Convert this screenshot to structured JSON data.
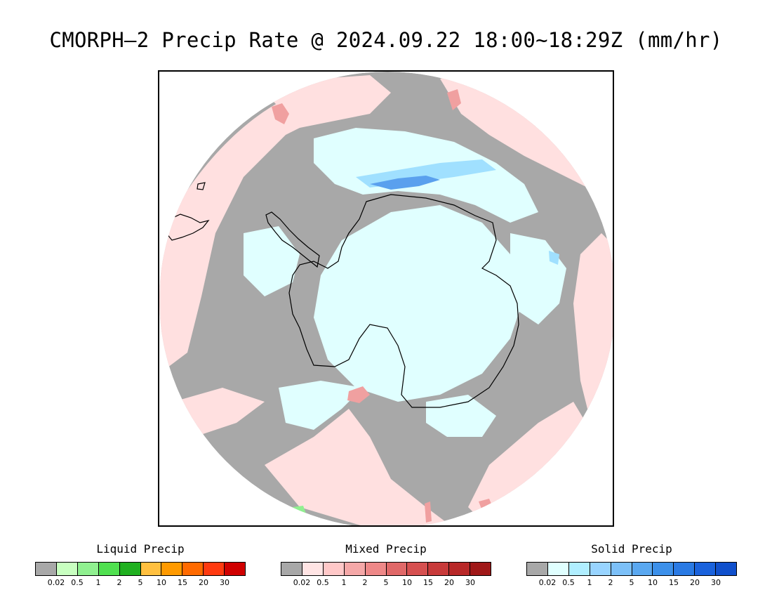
{
  "title": "CMORPH–2 Precip Rate @ 2024.09.22 18:00~18:29Z (mm/hr)",
  "map": {
    "projection": "south-polar-stereographic",
    "colors": {
      "no_data_gray": "#a8a8a8",
      "liquid_light": "#ffe0e0",
      "snow_light": "#e0ffff",
      "snow_mid": "#a0e0ff",
      "snow_blue": "#5aa0ee",
      "mixed_mid": "#f0a0a0",
      "coastline": "#000000",
      "green_spot": "#90f090"
    }
  },
  "legends": [
    {
      "title": "Liquid Precip",
      "colors": [
        "#a8a8a8",
        "#c8ffc0",
        "#90f090",
        "#50e050",
        "#20b020",
        "#ffc040",
        "#ff9a00",
        "#ff6a00",
        "#ff3a10",
        "#d00000"
      ],
      "ticks": [
        "0.02",
        "0.5",
        "1",
        "2",
        "5",
        "10",
        "15",
        "20",
        "30"
      ]
    },
    {
      "title": "Mixed Precip",
      "colors": [
        "#a8a8a8",
        "#ffe4e4",
        "#ffc8c8",
        "#f5a8a8",
        "#ee8888",
        "#e06868",
        "#d65050",
        "#c83a3a",
        "#b82828",
        "#a01818"
      ],
      "ticks": [
        "0.02",
        "0.5",
        "1",
        "2",
        "5",
        "10",
        "15",
        "20",
        "30"
      ]
    },
    {
      "title": "Solid Precip",
      "colors": [
        "#a8a8a8",
        "#e0ffff",
        "#b0eeff",
        "#98d4ff",
        "#7cc0f8",
        "#5aa8f0",
        "#3c90ea",
        "#2a7ae4",
        "#1a62dc",
        "#1050cc"
      ],
      "ticks": [
        "0.02",
        "0.5",
        "1",
        "2",
        "5",
        "10",
        "15",
        "20",
        "30"
      ]
    }
  ]
}
